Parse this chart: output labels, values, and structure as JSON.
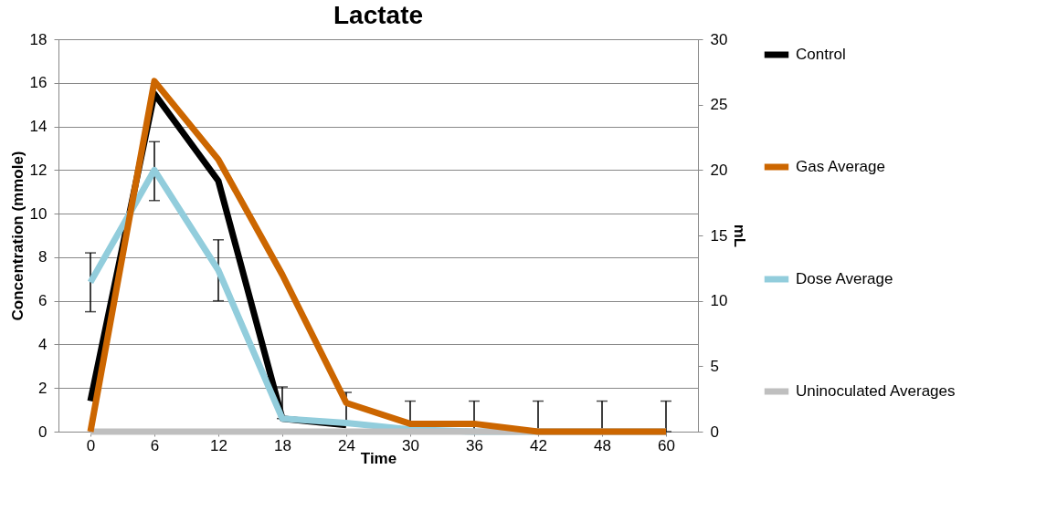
{
  "chart_data": {
    "type": "line",
    "title": "Lactate",
    "xlabel": "Time",
    "ylabel": "Concentration (mmole)",
    "y2label": "mL",
    "categories": [
      "0",
      "6",
      "12",
      "18",
      "24",
      "30",
      "36",
      "42",
      "48",
      "60"
    ],
    "series": [
      {
        "name": "Control",
        "color": "#000000",
        "values": [
          1.4,
          15.5,
          11.5,
          0.6,
          0.3,
          null,
          null,
          null,
          null,
          null
        ]
      },
      {
        "name": "Gas Average",
        "color": "#cc6600",
        "axis": "y2",
        "values": [
          0,
          26.8,
          20.8,
          12.0,
          2.2,
          0.6,
          0.6,
          0,
          0,
          0
        ]
      },
      {
        "name": "Dose Average",
        "color": "#92cddc",
        "values": [
          6.85,
          12,
          7.4,
          0.6,
          0.4,
          0.1,
          0,
          0,
          0,
          0
        ],
        "errors": [
          [
            5.5,
            8.2
          ],
          [
            10.6,
            13.3
          ],
          [
            6.0,
            8.8
          ],
          [
            0.6,
            2.05
          ],
          [
            0.4,
            1.8
          ],
          [
            0.1,
            1.4
          ],
          [
            0,
            1.4
          ],
          [
            0,
            1.4
          ],
          [
            0,
            1.4
          ],
          [
            0,
            1.4
          ]
        ]
      },
      {
        "name": "Uninoculated Averages",
        "color": "#bfbfbf",
        "values": [
          0,
          0,
          0,
          0,
          0,
          0,
          0,
          0,
          0,
          0
        ]
      }
    ],
    "ylim": [
      0,
      18
    ],
    "yticks": [
      0,
      2,
      4,
      6,
      8,
      10,
      12,
      14,
      16,
      18
    ],
    "y2lim": [
      0,
      30
    ],
    "y2ticks": [
      0,
      5,
      10,
      15,
      20,
      25,
      30
    ],
    "grid": "y",
    "legend": "right",
    "marker": "none",
    "line_style": "solid"
  }
}
